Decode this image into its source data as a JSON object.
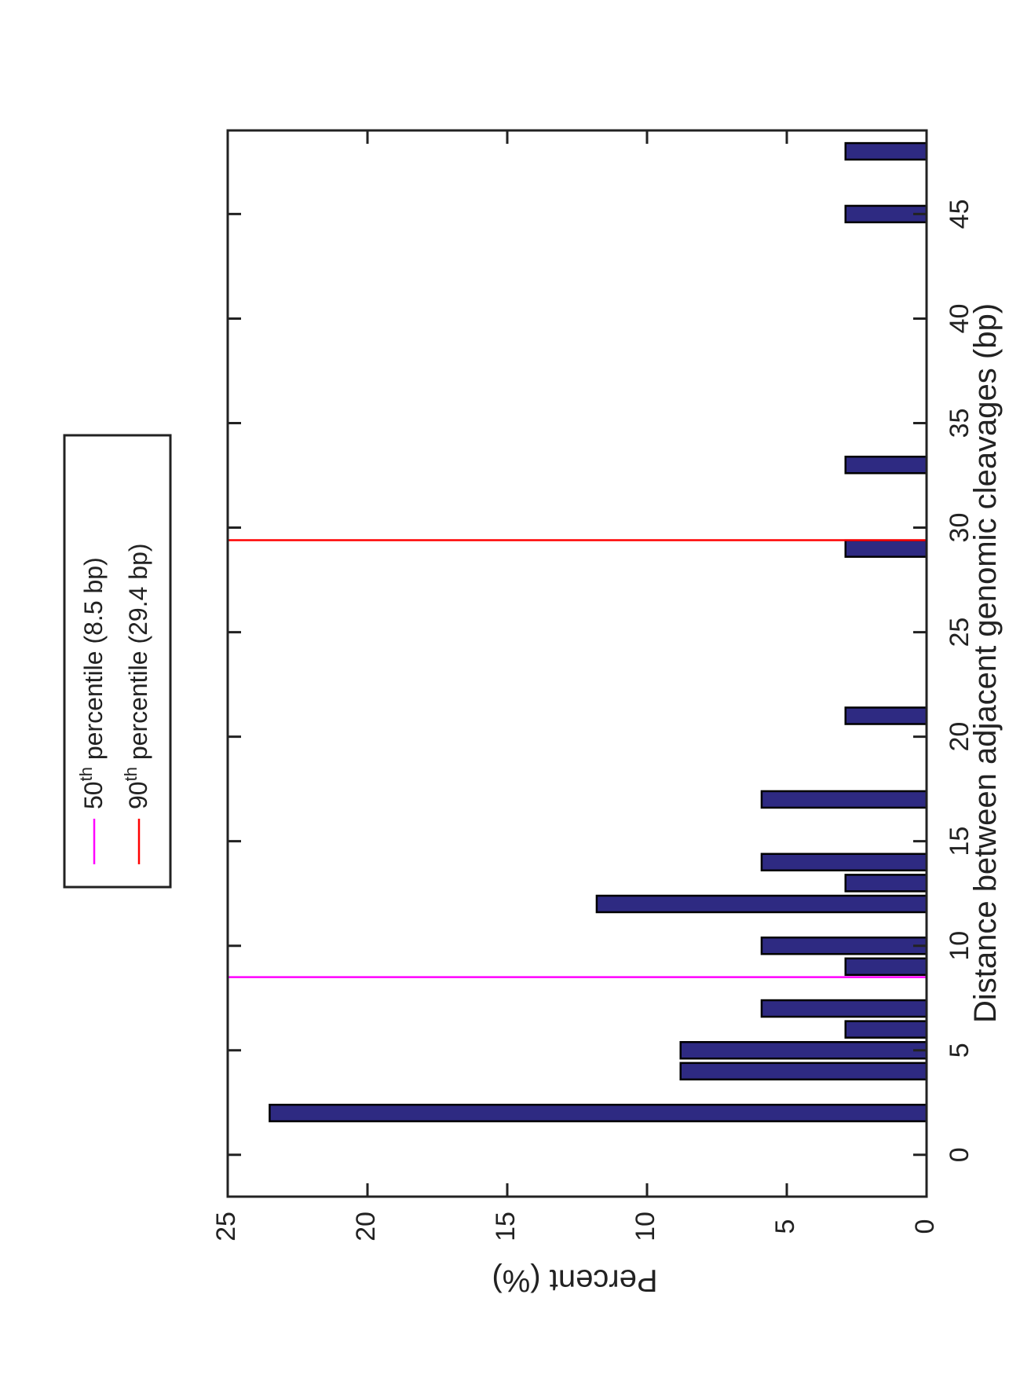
{
  "chart_data": {
    "type": "bar",
    "orientation": "rotated-90",
    "xlabel": "Distance between adjacent genomic cleavages (bp)",
    "ylabel": "Percent (%)",
    "xlim": [
      -2,
      49
    ],
    "ylim": [
      0,
      25
    ],
    "xticks": [
      0,
      5,
      10,
      15,
      20,
      25,
      30,
      35,
      40,
      45
    ],
    "yticks": [
      0,
      5,
      10,
      15,
      20,
      25
    ],
    "bars": [
      {
        "x": 2,
        "value": 23.5
      },
      {
        "x": 4,
        "value": 8.8
      },
      {
        "x": 5,
        "value": 8.8
      },
      {
        "x": 6,
        "value": 2.9
      },
      {
        "x": 7,
        "value": 5.9
      },
      {
        "x": 9,
        "value": 2.9
      },
      {
        "x": 10,
        "value": 5.9
      },
      {
        "x": 12,
        "value": 11.8
      },
      {
        "x": 13,
        "value": 2.9
      },
      {
        "x": 14,
        "value": 5.9
      },
      {
        "x": 17,
        "value": 5.9
      },
      {
        "x": 21,
        "value": 2.9
      },
      {
        "x": 29,
        "value": 2.9
      },
      {
        "x": 33,
        "value": 2.9
      },
      {
        "x": 45,
        "value": 2.9
      },
      {
        "x": 48,
        "value": 2.9
      }
    ],
    "bar_color": "#2e2a82",
    "bar_edge_color": "#000000",
    "grid": false,
    "legend_position": "top-right",
    "percentiles": [
      {
        "value": 8.5,
        "sup": "th",
        "pct": "50",
        "label": "percentile (8.5 bp)",
        "color": "#ff00ff"
      },
      {
        "value": 29.4,
        "sup": "th",
        "pct": "90",
        "label": "percentile (29.4 bp)",
        "color": "#ff0000"
      }
    ]
  }
}
